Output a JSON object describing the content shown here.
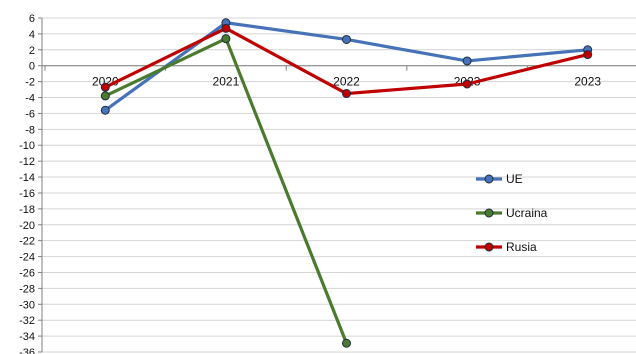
{
  "chart_data": {
    "type": "line",
    "categories": [
      "2020",
      "2021",
      "2022",
      "2023",
      "2023"
    ],
    "ylim": [
      -36,
      6
    ],
    "ytick_step": 2,
    "grid": true,
    "legend_position": "right",
    "series": [
      {
        "name": "UE",
        "color": "#4672b8",
        "values": [
          -5.6,
          5.4,
          3.3,
          0.6,
          2.0
        ]
      },
      {
        "name": "Ucraina",
        "color": "#4a7a2e",
        "values": [
          -3.8,
          3.4,
          -34.9,
          null,
          null
        ]
      },
      {
        "name": "Rusia",
        "color": "#c00000",
        "values": [
          -2.7,
          4.7,
          -3.5,
          -2.3,
          1.4
        ]
      }
    ]
  }
}
